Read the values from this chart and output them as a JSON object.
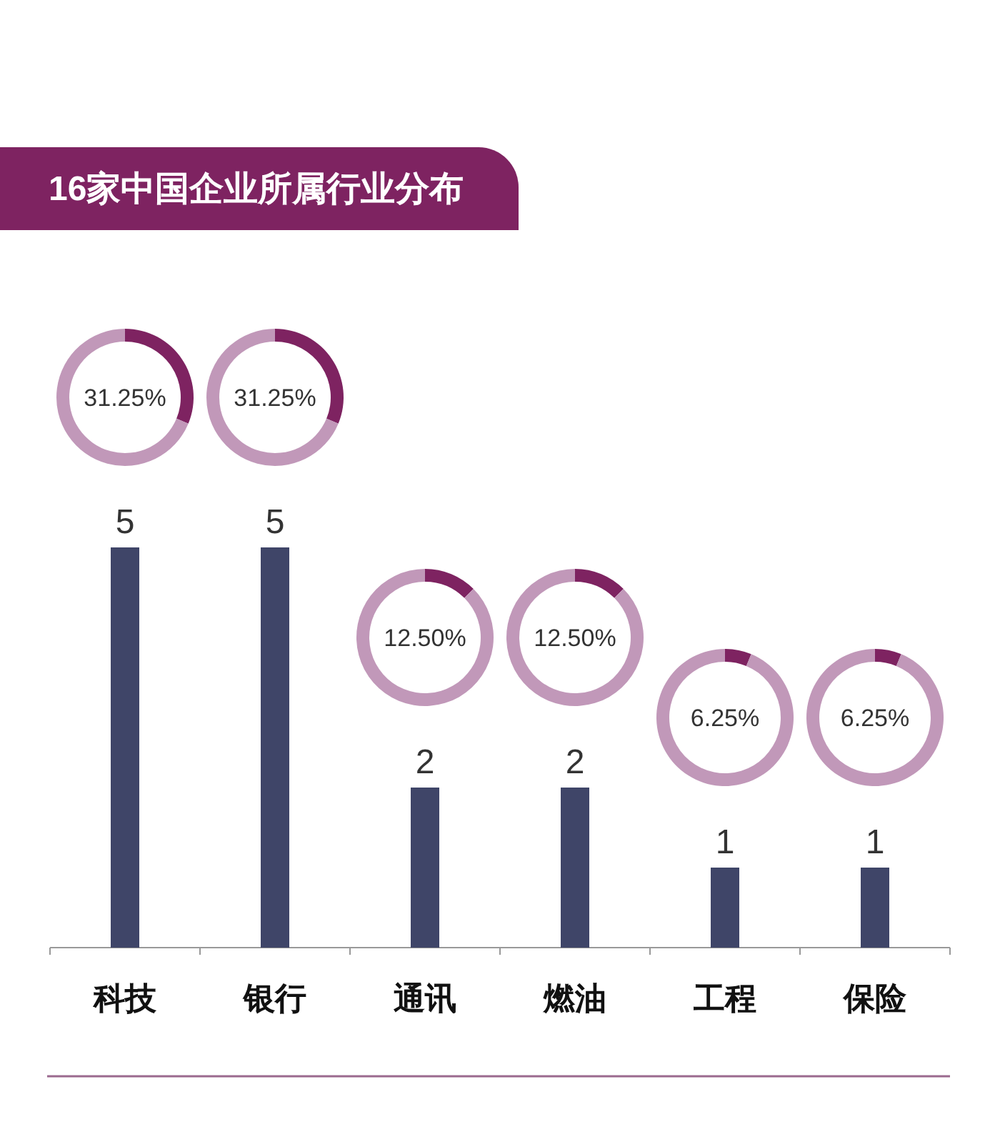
{
  "chart_data": [
    {
      "type": "bar",
      "title": "16家中国企业所属行业分布",
      "categories": [
        "科技",
        "银行",
        "通讯",
        "燃油",
        "工程",
        "保险"
      ],
      "values": [
        5,
        5,
        2,
        2,
        1,
        1
      ],
      "color": "#3f4568",
      "data_labels": true
    },
    {
      "type": "donut",
      "categories": [
        null,
        null
      ],
      "values": [
        31.25,
        68.75
      ],
      "colors": [
        "#7e2361",
        "#c198b9"
      ],
      "annotations": [
        "31.25%"
      ]
    },
    {
      "type": "donut",
      "categories": [
        null,
        null
      ],
      "values": [
        31.25,
        68.75
      ],
      "colors": [
        "#7e2361",
        "#c198b9"
      ],
      "annotations": [
        "31.25%"
      ]
    },
    {
      "type": "donut",
      "categories": [
        null,
        null
      ],
      "values": [
        12.5,
        87.5
      ],
      "colors": [
        "#7e2361",
        "#c198b9"
      ],
      "annotations": [
        "12.50%"
      ]
    },
    {
      "type": "donut",
      "categories": [
        null,
        null
      ],
      "values": [
        12.5,
        87.5
      ],
      "colors": [
        "#7e2361",
        "#c198b9"
      ],
      "annotations": [
        "12.50%"
      ]
    },
    {
      "type": "donut",
      "categories": [
        null,
        null
      ],
      "values": [
        6.25,
        93.75
      ],
      "colors": [
        "#7e2361",
        "#c198b9"
      ],
      "annotations": [
        "6.25%"
      ]
    },
    {
      "type": "donut",
      "categories": [
        null,
        null
      ],
      "values": [
        6.25,
        93.75
      ],
      "colors": [
        "#7e2361",
        "#c198b9"
      ],
      "annotations": [
        "6.25%"
      ]
    }
  ]
}
